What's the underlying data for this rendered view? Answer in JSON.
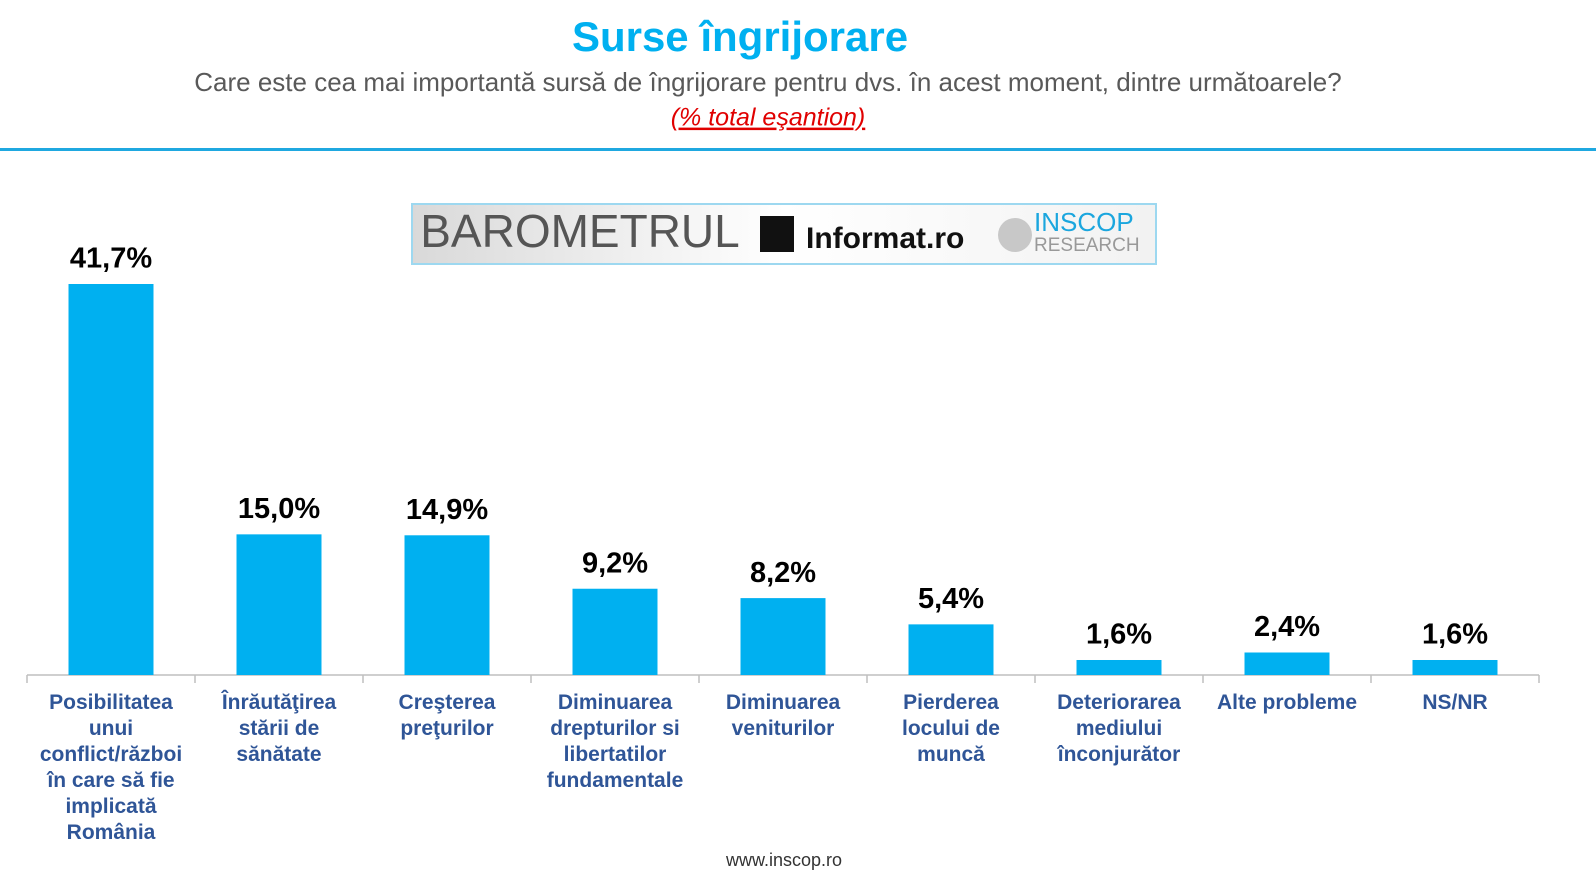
{
  "chart_data": {
    "type": "bar",
    "title": "Surse îngrijorare",
    "subtitle": "Care este cea mai importantă sursă de îngrijorare pentru dvs. în acest moment, dintre următoarele?",
    "note": "(% total eşantion)",
    "categories": [
      "Posibilitatea unui conflict/război în care să fie implicată România",
      "Înrăutăţirea stării de sănătate",
      "Creşterea preţurilor",
      "Diminuarea drepturilor si libertatilor fundamentale",
      "Diminuarea veniturilor",
      "Pierderea locului de muncă",
      "Deteriorarea mediului înconjurător",
      "Alte probleme",
      "NS/NR"
    ],
    "values": [
      41.7,
      15.0,
      14.9,
      9.2,
      8.2,
      5.4,
      1.6,
      2.4,
      1.6
    ],
    "value_labels": [
      "41,7%",
      "15,0%",
      "14,9%",
      "9,2%",
      "8,2%",
      "5,4%",
      "1,6%",
      "2,4%",
      "1,6%"
    ],
    "color": "#00b0f0",
    "grid": false
  },
  "banner": {
    "barometer": "BAROMETRUL",
    "partner": "Informat.ro",
    "brand": "INSCOP",
    "brand_sub": "RESEARCH"
  },
  "footer": "www.inscop.ro"
}
